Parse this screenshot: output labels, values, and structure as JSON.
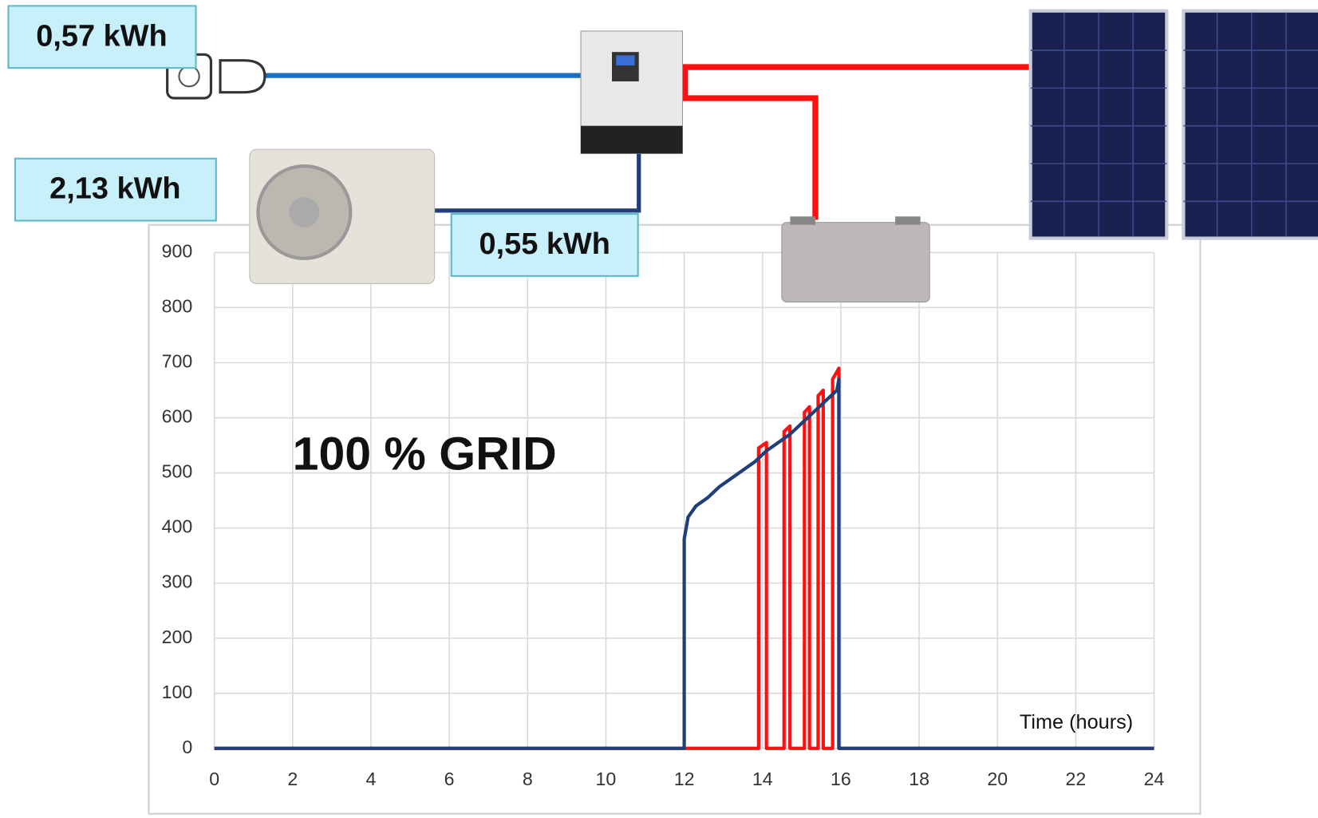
{
  "chart_data": {
    "type": "line",
    "annotation": "100 % GRID",
    "xlabel": "Time (hours)",
    "xlim": [
      0,
      24
    ],
    "xticks": [
      0,
      2,
      4,
      6,
      8,
      10,
      12,
      14,
      16,
      18,
      20,
      22,
      24
    ],
    "ylim": [
      0,
      900
    ],
    "yticks": [
      0,
      100,
      200,
      300,
      400,
      500,
      600,
      700,
      800,
      900
    ],
    "grid": true,
    "series": [
      {
        "color": "#ff1010",
        "x": [
          0,
          13.9,
          13.9,
          14.1,
          14.1,
          14.55,
          14.55,
          14.7,
          14.7,
          15.07,
          15.07,
          15.2,
          15.2,
          15.42,
          15.42,
          15.55,
          15.55,
          15.79,
          15.79,
          15.95,
          15.95,
          24
        ],
        "values": [
          0,
          0,
          545,
          555,
          0,
          0,
          575,
          585,
          0,
          0,
          610,
          620,
          0,
          0,
          640,
          650,
          0,
          0,
          670,
          690,
          0,
          0
        ]
      },
      {
        "color": "#1f3f7a",
        "x": [
          0,
          12,
          12,
          12.1,
          12.3,
          12.6,
          12.9,
          13.2,
          13.5,
          13.8,
          14.1,
          14.4,
          14.7,
          15.0,
          15.3,
          15.6,
          15.9,
          15.95,
          15.95,
          24
        ],
        "values": [
          0,
          0,
          380,
          420,
          440,
          455,
          475,
          490,
          505,
          520,
          540,
          555,
          570,
          590,
          610,
          630,
          650,
          670,
          0,
          0
        ]
      }
    ]
  },
  "diagram": {
    "labels": [
      "0,57 kWh",
      "2,13 kWh",
      "0,55 kWh"
    ]
  }
}
